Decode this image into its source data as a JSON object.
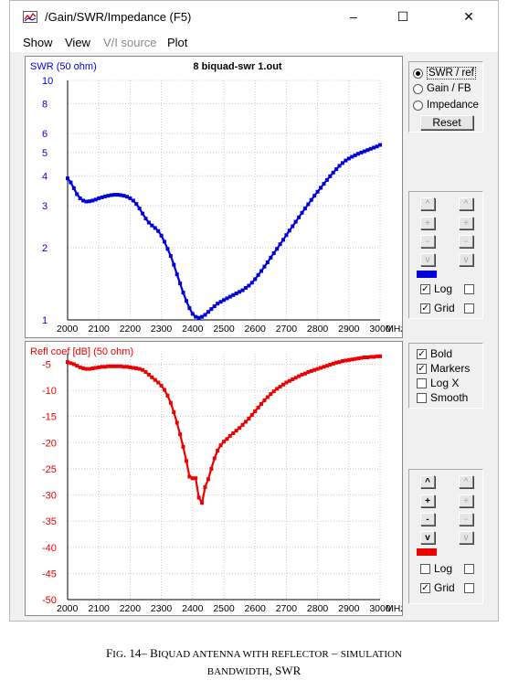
{
  "window": {
    "title": "/Gain/SWR/Impedance (F5)",
    "controls": {
      "minimize": "–",
      "maximize": "☐",
      "close": "✕"
    }
  },
  "menu": [
    {
      "label": "Show",
      "disabled": false
    },
    {
      "label": "View",
      "disabled": false
    },
    {
      "label": "V/I source",
      "disabled": true
    },
    {
      "label": "Plot",
      "disabled": false
    }
  ],
  "side": {
    "mode_options": [
      "SWR / ref",
      "Gain / FB",
      "Impedance"
    ],
    "mode_selected": 0,
    "reset_label": "Reset",
    "step_buttons": [
      "^",
      "+",
      "-",
      "v"
    ],
    "swr_log_label": "Log",
    "swr_grid_label": "Grid",
    "swr_log_checked": true,
    "swr_grid_checked": true,
    "swr_color": "#0000dd",
    "bold_label": "Bold",
    "markers_label": "Markers",
    "logx_label": "Log X",
    "smooth_label": "Smooth",
    "bold_checked": true,
    "markers_checked": true,
    "logx_checked": false,
    "smooth_checked": false,
    "refl_log_label": "Log",
    "refl_grid_label": "Grid",
    "refl_log_checked": false,
    "refl_grid_checked": true,
    "refl_color": "#ee0000"
  },
  "caption": {
    "line1_prefix": "F",
    "line1_prefix_sc": "IG",
    "line1_num": ". 14– B",
    "line1_rest_sc": "IQUAD ANTENNA WITH REFLECTOR",
    "line1_dash": " – ",
    "line1_end_sc": "SIMULATION",
    "line2_sc": "BANDWIDTH",
    "line2_end": ", SWR"
  },
  "chart_data": [
    {
      "type": "line",
      "title": "8 biquad-swr 1.out",
      "ylabel": "SWR (50 ohm)",
      "xlabel": "",
      "x_unit": "MHz",
      "x_ticks": [
        2000,
        2100,
        2200,
        2300,
        2400,
        2500,
        2600,
        2700,
        2800,
        2900,
        3000
      ],
      "y_ticks": [
        1,
        2,
        3,
        4,
        5,
        6,
        8,
        10
      ],
      "y_scale": "log",
      "xlim": [
        2000,
        3000
      ],
      "ylim": [
        1,
        10
      ],
      "grid": true,
      "color": "#0000dd",
      "x": [
        2000,
        2010,
        2020,
        2030,
        2040,
        2050,
        2060,
        2070,
        2080,
        2090,
        2100,
        2110,
        2120,
        2130,
        2140,
        2150,
        2160,
        2170,
        2180,
        2190,
        2200,
        2210,
        2220,
        2230,
        2240,
        2250,
        2260,
        2270,
        2280,
        2290,
        2300,
        2310,
        2320,
        2330,
        2340,
        2350,
        2360,
        2370,
        2380,
        2390,
        2400,
        2410,
        2420,
        2430,
        2440,
        2450,
        2460,
        2470,
        2480,
        2490,
        2500,
        2510,
        2520,
        2530,
        2540,
        2550,
        2560,
        2570,
        2580,
        2590,
        2600,
        2610,
        2620,
        2630,
        2640,
        2650,
        2660,
        2670,
        2680,
        2690,
        2700,
        2710,
        2720,
        2730,
        2740,
        2750,
        2760,
        2770,
        2780,
        2790,
        2800,
        2810,
        2820,
        2830,
        2840,
        2850,
        2860,
        2870,
        2880,
        2890,
        2900,
        2910,
        2920,
        2930,
        2940,
        2950,
        2960,
        2970,
        2980,
        2990,
        3000
      ],
      "y": [
        3.9,
        3.75,
        3.55,
        3.35,
        3.22,
        3.15,
        3.12,
        3.13,
        3.15,
        3.18,
        3.22,
        3.25,
        3.28,
        3.3,
        3.32,
        3.33,
        3.33,
        3.32,
        3.3,
        3.27,
        3.22,
        3.15,
        3.05,
        2.92,
        2.78,
        2.65,
        2.55,
        2.48,
        2.42,
        2.35,
        2.25,
        2.12,
        1.98,
        1.85,
        1.7,
        1.55,
        1.42,
        1.3,
        1.2,
        1.12,
        1.06,
        1.03,
        1.02,
        1.03,
        1.05,
        1.08,
        1.11,
        1.14,
        1.17,
        1.19,
        1.21,
        1.23,
        1.25,
        1.27,
        1.29,
        1.31,
        1.33,
        1.36,
        1.39,
        1.43,
        1.48,
        1.54,
        1.6,
        1.67,
        1.74,
        1.82,
        1.9,
        1.98,
        2.07,
        2.16,
        2.26,
        2.36,
        2.46,
        2.57,
        2.68,
        2.8,
        2.92,
        3.04,
        3.17,
        3.3,
        3.43,
        3.56,
        3.7,
        3.84,
        3.98,
        4.12,
        4.26,
        4.4,
        4.52,
        4.63,
        4.72,
        4.8,
        4.87,
        4.94,
        5.0,
        5.06,
        5.12,
        5.18,
        5.24,
        5.3,
        5.38
      ]
    },
    {
      "type": "line",
      "title": "",
      "ylabel": "Refl coef [dB] (50 ohm)",
      "xlabel": "",
      "x_unit": "MHz",
      "x_ticks": [
        2000,
        2100,
        2200,
        2300,
        2400,
        2500,
        2600,
        2700,
        2800,
        2900,
        3000
      ],
      "y_ticks": [
        -5,
        -10,
        -15,
        -20,
        -25,
        -30,
        -35,
        -40,
        -45,
        -50
      ],
      "y_scale": "linear",
      "xlim": [
        2000,
        3000
      ],
      "ylim": [
        -50,
        -3
      ],
      "grid": true,
      "color": "#ee0000",
      "x": [
        2000,
        2010,
        2020,
        2030,
        2040,
        2050,
        2060,
        2070,
        2080,
        2090,
        2100,
        2110,
        2120,
        2130,
        2140,
        2150,
        2160,
        2170,
        2180,
        2190,
        2200,
        2210,
        2220,
        2230,
        2240,
        2250,
        2260,
        2270,
        2280,
        2290,
        2300,
        2310,
        2320,
        2330,
        2340,
        2350,
        2360,
        2370,
        2380,
        2390,
        2400,
        2410,
        2420,
        2430,
        2440,
        2450,
        2460,
        2470,
        2480,
        2490,
        2500,
        2510,
        2520,
        2530,
        2540,
        2550,
        2560,
        2570,
        2580,
        2590,
        2600,
        2610,
        2620,
        2630,
        2640,
        2650,
        2660,
        2670,
        2680,
        2690,
        2700,
        2710,
        2720,
        2730,
        2740,
        2750,
        2760,
        2770,
        2780,
        2790,
        2800,
        2810,
        2820,
        2830,
        2840,
        2850,
        2860,
        2870,
        2880,
        2890,
        2900,
        2910,
        2920,
        2930,
        2940,
        2950,
        2960,
        2970,
        2980,
        2990,
        3000
      ],
      "y": [
        -4.6,
        -4.8,
        -5.0,
        -5.3,
        -5.6,
        -5.8,
        -5.9,
        -5.9,
        -5.8,
        -5.7,
        -5.6,
        -5.5,
        -5.5,
        -5.4,
        -5.4,
        -5.4,
        -5.4,
        -5.4,
        -5.5,
        -5.5,
        -5.6,
        -5.7,
        -5.8,
        -5.9,
        -6.1,
        -6.5,
        -7.0,
        -7.5,
        -8.0,
        -8.5,
        -9.1,
        -9.9,
        -11.0,
        -12.4,
        -14.2,
        -16.2,
        -18.4,
        -20.8,
        -23.5,
        -26.5,
        -26.8,
        -26.8,
        -30.5,
        -31.5,
        -28.5,
        -27.0,
        -25.0,
        -23.0,
        -21.5,
        -20.5,
        -19.8,
        -19.3,
        -18.7,
        -18.2,
        -17.7,
        -17.2,
        -16.6,
        -16.0,
        -15.4,
        -14.7,
        -14.0,
        -13.3,
        -12.6,
        -11.9,
        -11.3,
        -10.7,
        -10.2,
        -9.7,
        -9.3,
        -8.9,
        -8.5,
        -8.2,
        -7.9,
        -7.6,
        -7.3,
        -7.0,
        -6.8,
        -6.5,
        -6.3,
        -6.1,
        -5.9,
        -5.7,
        -5.5,
        -5.3,
        -5.1,
        -4.9,
        -4.7,
        -4.6,
        -4.4,
        -4.3,
        -4.2,
        -4.1,
        -4.0,
        -3.9,
        -3.8,
        -3.7,
        -3.7,
        -3.6,
        -3.6,
        -3.5,
        -3.5
      ]
    }
  ]
}
